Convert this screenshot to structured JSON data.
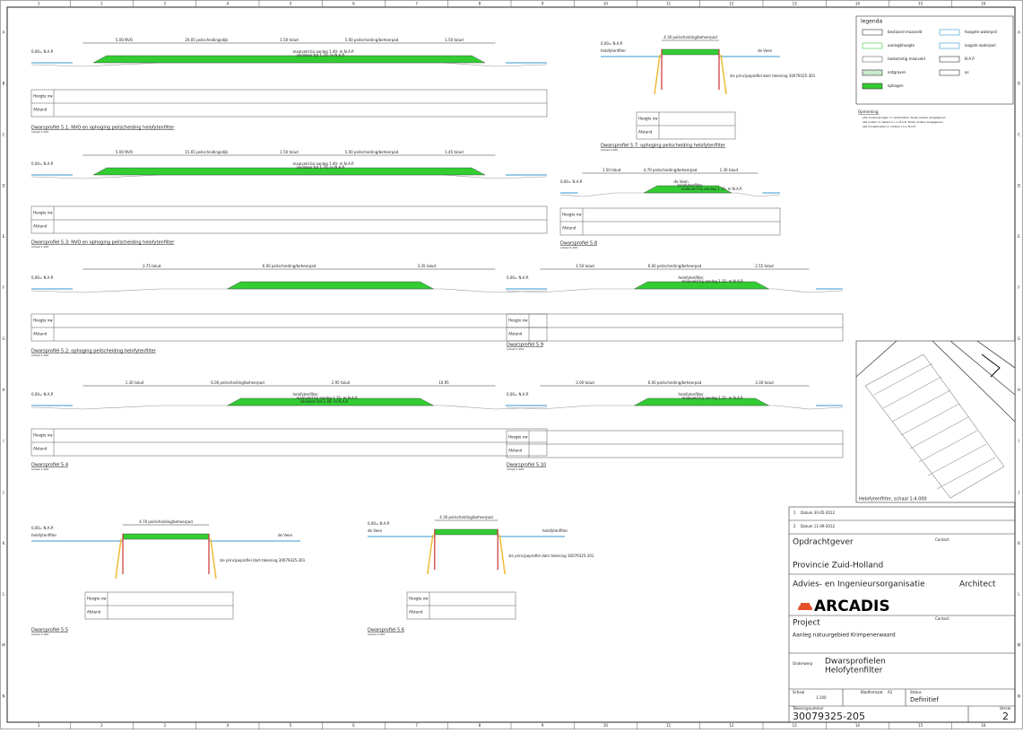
{
  "grid": {
    "columns": [
      "1",
      "2",
      "3",
      "4",
      "5",
      "6",
      "7",
      "8",
      "9",
      "10",
      "11",
      "12",
      "13",
      "14",
      "15",
      "16"
    ],
    "rows": [
      "A",
      "B",
      "C",
      "D",
      "E",
      "F",
      "G",
      "H",
      "I",
      "J",
      "K",
      "L",
      "M",
      "N"
    ]
  },
  "legend": {
    "title": "legenda",
    "items": [
      "bestaand maaiveld",
      "aanlegbhoogte",
      "toekomstig maaiveld",
      "ontgraven",
      "ophogen",
      "hoogste waterpeil",
      "laagste waterpeil",
      "N.A.P.",
      "as"
    ]
  },
  "remarks": {
    "title": "Opmerking:",
    "lines": [
      "alle maatvoeringen in centimeters, tenzij anders aangegeven",
      "alle maten in meters t.o.v. N.A.P., tenzij anders aangegeven",
      "alle hoogtematen in meters t.o.v. N.A.P."
    ]
  },
  "profiles": [
    {
      "caption": "Dwarsprofiel 5.1: NVO en ophoging peilscheiding helofytenfilter",
      "scale": "schaal 1:100",
      "rows": [
        "Hoogte nw",
        "Afstand"
      ],
      "dims": [
        "5.00 NVO",
        "20.05 peilscheidingsdijk",
        "1.50 talud",
        "5.00 peilscheiding/beheerpad",
        "1.50 talud"
      ],
      "notes": [
        "0,00= N.A.P.",
        "maaiveld bij aanleg 1.40- m N.A.P.",
        "inklinken tot 1.70- m N.A.P."
      ]
    },
    {
      "caption": "Dwarsprofiel 5.3: NVO en ophoging peilscheiding helofytenfilter",
      "scale": "schaal 1:100",
      "rows": [
        "Hoogte nw",
        "Afstand"
      ],
      "dims": [
        "5.00 NVO",
        "15.65 peilscheidingsdijk",
        "1.50 talud",
        "5.00 peilscheiding/beheerpad",
        "1.45 talud"
      ],
      "notes": [
        "0,00= N.A.P.",
        "maaiveld bij aanleg 1.40- m N.A.P.",
        "inklinken tot 1.70- m N.A.P."
      ]
    },
    {
      "caption": "Dwarsprofiel 5.2: ophoging peilscheiding helofytenfilter",
      "scale": "schaal 1:100",
      "rows": [
        "Hoogte nw",
        "Afstand"
      ],
      "dims": [
        "3.75 talud",
        "6.00 peilscheiding/beheerpad",
        "3.35 talud"
      ],
      "notes": [
        "0,00= N.A.P."
      ]
    },
    {
      "caption": "Dwarsprofiel 5.4",
      "scale": "schaal 1:100",
      "rows": [
        "Hoogte nw",
        "Afstand"
      ],
      "dims": [
        "1.30 talud",
        "6.00 peilscheiding/beheerpad",
        "2.95 talud",
        "10.95"
      ],
      "notes": [
        "0,00= N.A.P.",
        "helofytenfilter",
        "maaiveld bij aanleg 1.15- m N.A.P.",
        "inklinken tot 1.40- m N.A.P."
      ]
    },
    {
      "caption": "Dwarsprofiel 5.5",
      "scale": "schaal 1:100",
      "rows": [
        "Hoogte nw",
        "Afstand"
      ],
      "dims": [
        "4.70 peilscheiding/beheerpad"
      ],
      "notes": [
        "0,00= N.A.P.",
        "helofytenfilter",
        "de Veen",
        "zie principeprofiel dam tekening 30079325-301"
      ],
      "narrow": true
    },
    {
      "caption": "Dwarsprofiel 5.6",
      "scale": "schaal 1:100",
      "rows": [
        "Hoogte nw",
        "Afstand"
      ],
      "dims": [
        "4.30 peilscheiding/beheerpad"
      ],
      "notes": [
        "0,00= N.A.P.",
        "de Veen",
        "helofytenfilter",
        "zie principeprofiel dam tekening 30079325-301"
      ],
      "narrow": true
    },
    {
      "caption": "Dwarsprofiel 5.7: ophoging peilscheiding helofytenfilter",
      "scale": "schaal 1:100",
      "rows": [
        "Hoogte nw",
        "Afstand"
      ],
      "dims": [
        "4.30 peilscheiding/beheerpad"
      ],
      "notes": [
        "0,00= N.A.P.",
        "helofytenfilter",
        "de Veen",
        "zie principeprofiel dam tekening 30079325-301"
      ],
      "narrow": true
    },
    {
      "caption": "Dwarsprofiel 5.8",
      "scale": "schaal 1:100",
      "rows": [
        "Hoogte nw",
        "Afstand"
      ],
      "dims": [
        "1.50 talud",
        "4.70 peilscheiding/beheerpad",
        "1.30 talud"
      ],
      "notes": [
        "0,00= N.A.P.",
        "de Veen",
        "helofytenfilter",
        "maaiveld bij aanleg 1.15- m N.A.P."
      ]
    },
    {
      "caption": "Dwarsprofiel 5.9",
      "scale": "schaal 1:100",
      "rows": [
        "Hoogte nw",
        "Afstand"
      ],
      "dims": [
        "1.50 talud",
        "6.00 peilscheiding/beheerpad",
        "2.55 talud"
      ],
      "notes": [
        "0,00= N.A.P.",
        "helofytenfilter",
        "maaiveld bij aanleg 1.15- m N.A.P."
      ]
    },
    {
      "caption": "Dwarsprofiel 5.10",
      "scale": "schaal 1:100",
      "rows": [
        "Hoogte nw",
        "Afstand"
      ],
      "dims": [
        "2.00 talud",
        "6.00 peilscheiding/beheerpad",
        "3.30 talud"
      ],
      "notes": [
        "0,00= N.A.P.",
        "helofytenfilter",
        "maaiveld bij aanleg 1.15- m N.A.P."
      ]
    }
  ],
  "map": {
    "caption": "Helofytenfilter, schaal 1:4.000"
  },
  "titleblock": {
    "client_label": "Opdrachtgever",
    "contact": "Contact",
    "client": "Provincie Zuid-Holland",
    "advisor_label": "Advies- en Ingenieursorganisatie",
    "architect": "Architect",
    "company": "ARCADIS",
    "project_label": "Project",
    "project": "Aanleg natuurgebied Krimpenerwaard",
    "subject_label": "Onderwerp",
    "subject": [
      "Dwarsprofielen",
      "Helofytenfilter"
    ],
    "scale_label": "Schaal",
    "scale": "1:100",
    "format_label": "Bladformaat",
    "format": "A1",
    "status_label": "Status",
    "status": "Definitief",
    "number_label": "Tekeningnummer",
    "number": "30079325-205",
    "version_label": "Versie",
    "version": "2",
    "revisions": [
      [
        "1",
        "Datum 30-05-2012"
      ],
      [
        "2",
        "Datum 11-09-2012"
      ]
    ]
  }
}
